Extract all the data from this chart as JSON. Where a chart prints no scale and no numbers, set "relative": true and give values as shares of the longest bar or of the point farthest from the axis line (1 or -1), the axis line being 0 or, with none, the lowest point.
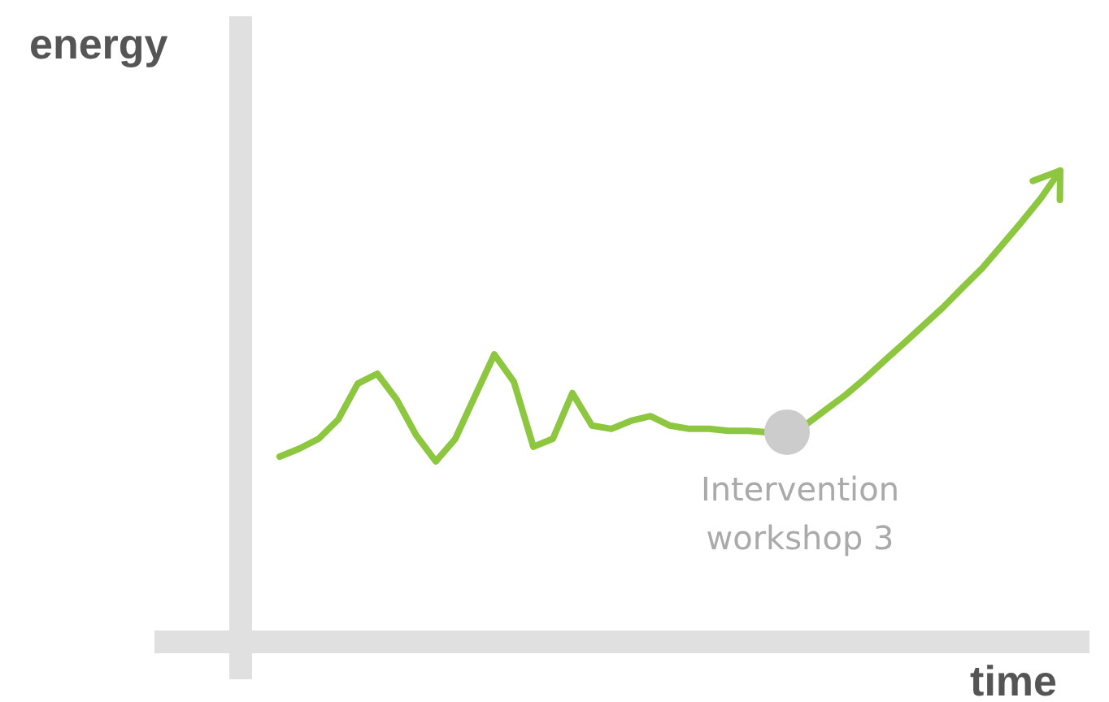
{
  "chart_data": {
    "type": "line",
    "relative": true,
    "xlabel": "time",
    "ylabel": "energy",
    "categories": [
      null,
      null,
      null,
      null,
      null,
      null,
      null,
      null,
      null,
      null,
      null,
      null,
      null,
      null,
      null,
      null,
      null,
      null,
      null,
      null,
      null,
      null,
      null,
      null,
      null,
      null,
      null,
      null,
      null,
      null,
      null,
      null,
      null,
      null,
      null,
      null,
      null,
      null,
      null,
      null,
      null
    ],
    "series": [
      {
        "color": "#8dc63f",
        "values": [
          0.393,
          0.41,
          0.431,
          0.472,
          0.548,
          0.569,
          0.514,
          0.438,
          0.383,
          0.431,
          0.521,
          0.61,
          0.552,
          0.414,
          0.431,
          0.528,
          0.459,
          0.452,
          0.469,
          0.479,
          0.459,
          0.452,
          0.452,
          0.448,
          0.448,
          0.445,
          0.445,
          0.462,
          0.493,
          0.524,
          0.559,
          0.597,
          0.634,
          0.672,
          0.71,
          0.752,
          0.793,
          0.841,
          0.89,
          0.941,
          1.0
        ]
      }
    ],
    "annotations": [
      {
        "text": "Intervention workshop 3",
        "y": 0.445
      }
    ],
    "marker": "none",
    "line_style": "solid"
  }
}
